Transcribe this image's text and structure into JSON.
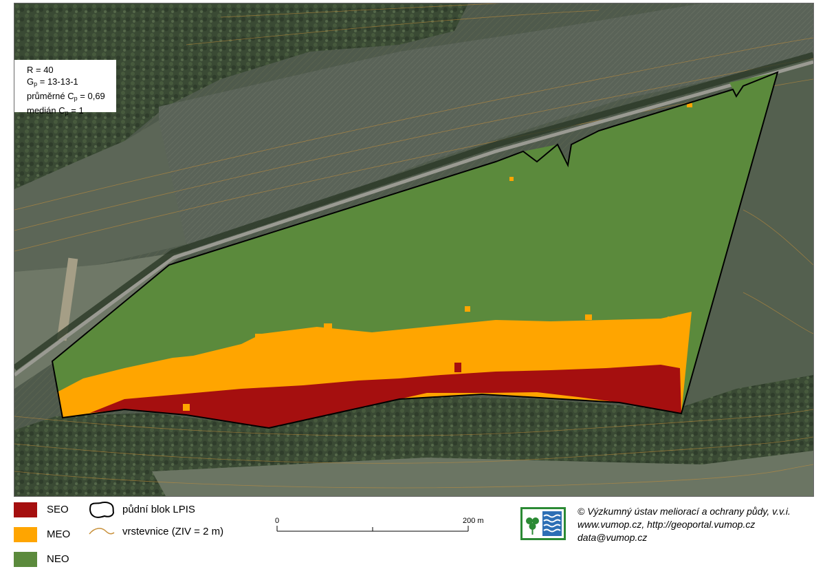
{
  "stats": {
    "r_line": "R = 40",
    "gp_prefix": "G",
    "gp_sub": "p",
    "gp_value": " = 13-13-1",
    "cp_avg_prefix": "průměrné C",
    "cp_avg_sub": "p",
    "cp_avg_value": " = 0,69",
    "cp_median_prefix": "medián C",
    "cp_median_sub": "p",
    "cp_median_value": " = 1"
  },
  "legend": {
    "items": [
      {
        "label": "SEO",
        "color": "#a50f0f"
      },
      {
        "label": "MEO",
        "color": "#ffa500"
      },
      {
        "label": "NEO",
        "color": "#5b8a3c"
      }
    ],
    "block_label": "půdní blok LPIS",
    "contour_label": "vrstevnice (ZIV = 2 m)"
  },
  "scale": {
    "start": "0",
    "end": "200 m"
  },
  "credits": {
    "line1": "© Výzkumný ústav meliorací a ochrany půdy, v.v.i.",
    "line2": "www.vumop.cz, http://geoportal.vumop.cz",
    "line3": "data@vumop.cz"
  },
  "colors": {
    "seo": "#a50f0f",
    "meo": "#ffa500",
    "neo": "#5b8a3c",
    "contour": "#c8903a"
  }
}
